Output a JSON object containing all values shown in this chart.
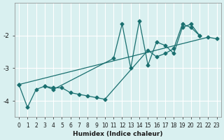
{
  "background_color": "#d9f0f0",
  "grid_color": "#ffffff",
  "line_color": "#1a7070",
  "xlabel": "Humidex (Indice chaleur)",
  "ylim": [
    -4.5,
    -1.0
  ],
  "xlim": [
    -0.5,
    23.5
  ],
  "yticks": [
    -4,
    -3,
    -2
  ],
  "xticks": [
    0,
    1,
    2,
    3,
    4,
    5,
    6,
    7,
    8,
    9,
    10,
    11,
    12,
    13,
    14,
    15,
    16,
    17,
    18,
    19,
    20,
    21,
    22,
    23
  ],
  "series": [
    {
      "points": [
        [
          0,
          -3.5
        ],
        [
          1,
          -4.2
        ],
        [
          2,
          -3.65
        ],
        [
          3,
          -3.55
        ],
        [
          4,
          -3.6
        ],
        [
          5,
          -3.6
        ],
        [
          6,
          -3.75
        ],
        [
          7,
          -3.8
        ],
        [
          8,
          -3.85
        ],
        [
          9,
          -3.9
        ],
        [
          10,
          -3.95
        ],
        [
          15,
          -2.45
        ],
        [
          16,
          -2.65
        ],
        [
          17,
          -2.55
        ],
        [
          18,
          -2.4
        ],
        [
          19,
          -1.65
        ],
        [
          20,
          -1.75
        ],
        [
          21,
          -2.0
        ]
      ],
      "connect_gaps": false
    },
    {
      "points": [
        [
          3,
          -3.55
        ],
        [
          4,
          -3.65
        ],
        [
          11,
          -2.7
        ],
        [
          12,
          -1.65
        ],
        [
          13,
          -3.0
        ],
        [
          14,
          -1.55
        ],
        [
          15,
          -2.9
        ],
        [
          16,
          -2.2
        ],
        [
          17,
          -2.3
        ],
        [
          18,
          -2.55
        ],
        [
          19,
          -1.75
        ],
        [
          20,
          -1.65
        ],
        [
          21,
          -2.0
        ]
      ],
      "connect_gaps": true
    },
    {
      "points": [
        [
          0,
          -3.5
        ],
        [
          22,
          -2.05
        ],
        [
          23,
          -2.1
        ]
      ],
      "connect_gaps": true
    }
  ]
}
